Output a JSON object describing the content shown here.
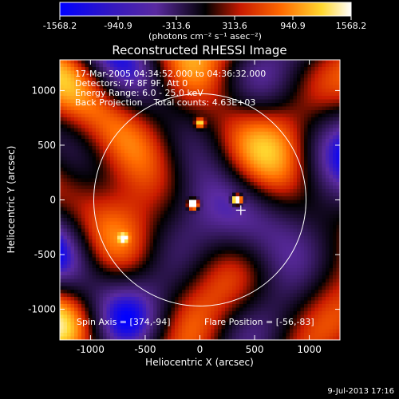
{
  "title": "Reconstructed RHESSI Image",
  "colorbar": {
    "ticks": [
      -1568.2,
      -940.9,
      -313.6,
      313.6,
      940.9,
      1568.2
    ],
    "tick_labels": [
      "-1568.2",
      "-940.9",
      "-313.6",
      "313.6",
      "940.9",
      "1568.2"
    ],
    "units": "(photons cm⁻² s⁻¹ asec⁻²)"
  },
  "annotations": {
    "time_range": "17-Mar-2005 04:34:52.000 to 04:36:32.000",
    "detectors": "Detectors: 7F 8F 9F, Att 0",
    "energy_range": "Energy Range: 6.0 - 25.0 keV",
    "method_and_counts": "Back Projection    Total counts: 4.63E+03",
    "spin_axis": "Spin Axis = [374,-94]",
    "flare_position": "Flare Position = [-56,-83]"
  },
  "footer_timestamp": "9-Jul-2013 17:16",
  "chart_data": {
    "type": "heatmap",
    "title": "Reconstructed RHESSI Image",
    "xlabel": "Heliocentric X (arcsec)",
    "ylabel": "Heliocentric Y (arcsec)",
    "xlim": [
      -1280,
      1280
    ],
    "ylim": [
      -1280,
      1280
    ],
    "x_ticks": [
      -1000,
      -500,
      0,
      500,
      1000
    ],
    "y_ticks": [
      -1000,
      -500,
      0,
      500,
      1000
    ],
    "x_tick_labels": [
      "-1000",
      "-500",
      "0",
      "500",
      "1000"
    ],
    "y_tick_labels": [
      "-1000",
      "-500",
      "0",
      "500",
      "1000"
    ],
    "value_range": [
      -1568.2,
      1568.2
    ],
    "colormap": [
      "#0000ff",
      "#5a2aa0",
      "#000000",
      "#c81a00",
      "#ff6a00",
      "#ffd830",
      "#ffffff"
    ],
    "solar_disk": {
      "center": [
        0,
        0
      ],
      "radius": 970,
      "color": "#ffffff"
    },
    "spin_axis": [
      374,
      -94
    ],
    "flare_position": [
      -56,
      -83
    ],
    "cross_marker": [
      374,
      -94
    ]
  }
}
